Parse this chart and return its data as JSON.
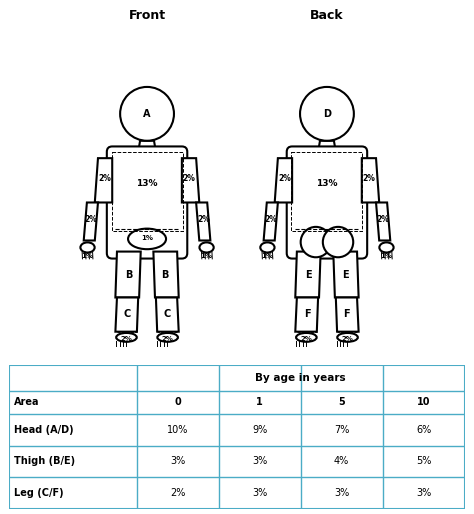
{
  "title_front": "Front",
  "title_back": "Back",
  "table_header_main": "By age in years",
  "table_col_header": [
    "Area",
    "0",
    "1",
    "5",
    "10"
  ],
  "table_rows": [
    [
      "Head (A/D)",
      "10%",
      "9%",
      "7%",
      "6%"
    ],
    [
      "Thigh (B/E)",
      "3%",
      "3%",
      "4%",
      "5%"
    ],
    [
      "Leg (C/F)",
      "2%",
      "3%",
      "3%",
      "3%"
    ]
  ],
  "bg_color": "#ffffff",
  "table_border_color": "#4BACC6",
  "body_color": "#000000",
  "label_color": "#000000"
}
